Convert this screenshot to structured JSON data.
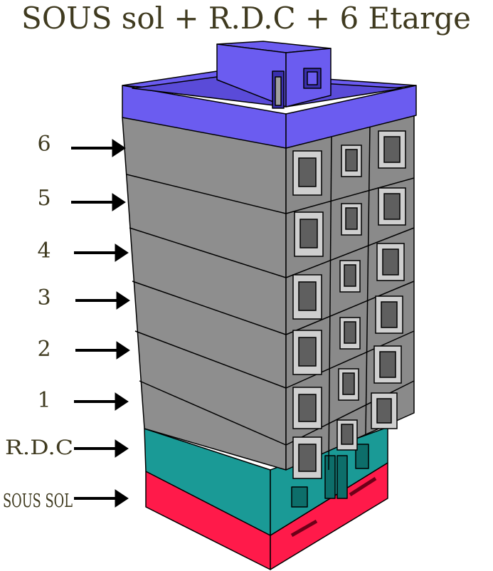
{
  "title": "SOUS sol + R.D.C + 6  Etarge",
  "floor_labels": {
    "f6": "6",
    "f5": "5",
    "f4": "4",
    "f3": "3",
    "f2": "2",
    "f1": "1",
    "rdc": "R.D.C",
    "sous_sol": "SOUS SOL"
  },
  "colors": {
    "roof": "#6b5cf0",
    "floors": "#8e8e8e",
    "floors_dark": "#7a7a7a",
    "rdc": "#1a9a96",
    "basement": "#ff1a4a",
    "text": "#3f3a1f",
    "outline": "#000000"
  },
  "icons": {
    "floor_pointer": "right-arrow-icon"
  }
}
